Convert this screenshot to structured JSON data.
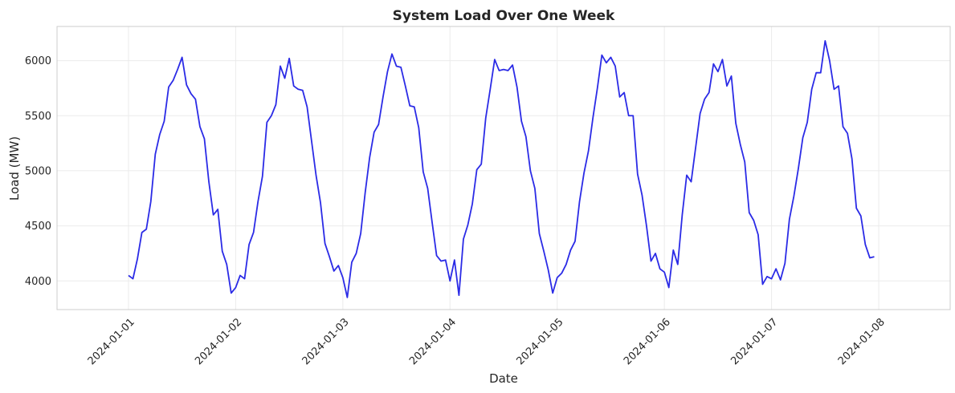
{
  "chart_data": {
    "type": "line",
    "title": "System Load Over One Week",
    "xlabel": "Date",
    "ylabel": "Load (MW)",
    "xlim": [
      "2023-12-31T08:00",
      "2024-01-08T16:00"
    ],
    "ylim": [
      3740,
      6310
    ],
    "grid": true,
    "line_color": "#2b2be6",
    "x_ticks": [
      "2024-01-01",
      "2024-01-02",
      "2024-01-03",
      "2024-01-04",
      "2024-01-05",
      "2024-01-06",
      "2024-01-07",
      "2024-01-08"
    ],
    "y_ticks": [
      4000,
      4500,
      5000,
      5500,
      6000
    ],
    "series": [
      {
        "x_start": "2024-01-01T00:00",
        "x_step_hours": 1,
        "values": [
          4050,
          4020,
          4200,
          4440,
          4470,
          4720,
          5150,
          5330,
          5450,
          5760,
          5820,
          5920,
          6030,
          5780,
          5700,
          5650,
          5400,
          5290,
          4900,
          4600,
          4650,
          4270,
          4150,
          3890,
          3940,
          4050,
          4020,
          4330,
          4440,
          4720,
          4950,
          5440,
          5500,
          5600,
          5950,
          5840,
          6020,
          5770,
          5740,
          5730,
          5580,
          5270,
          4960,
          4710,
          4340,
          4220,
          4090,
          4140,
          4030,
          3850,
          4170,
          4250,
          4430,
          4800,
          5120,
          5350,
          5420,
          5670,
          5900,
          6060,
          5950,
          5940,
          5770,
          5590,
          5580,
          5390,
          4990,
          4840,
          4530,
          4230,
          4180,
          4190,
          4000,
          4190,
          3870,
          4380,
          4510,
          4700,
          5010,
          5060,
          5480,
          5740,
          6010,
          5910,
          5920,
          5910,
          5960,
          5760,
          5450,
          5310,
          5000,
          4840,
          4430,
          4270,
          4100,
          3890,
          4030,
          4070,
          4150,
          4280,
          4360,
          4720,
          4980,
          5180,
          5480,
          5750,
          6050,
          5980,
          6030,
          5950,
          5670,
          5710,
          5500,
          5500,
          4970,
          4780,
          4500,
          4180,
          4250,
          4110,
          4080,
          3940,
          4280,
          4150,
          4600,
          4960,
          4900,
          5210,
          5520,
          5650,
          5710,
          5970,
          5900,
          6010,
          5770,
          5860,
          5430,
          5240,
          5080,
          4620,
          4550,
          4420,
          3970,
          4040,
          4020,
          4110,
          4010,
          4160,
          4560,
          4770,
          5020,
          5300,
          5440,
          5740,
          5890,
          5890,
          6180,
          6000,
          5740,
          5770,
          5400,
          5340,
          5110,
          4660,
          4590,
          4330,
          4210,
          4220
        ]
      }
    ]
  }
}
